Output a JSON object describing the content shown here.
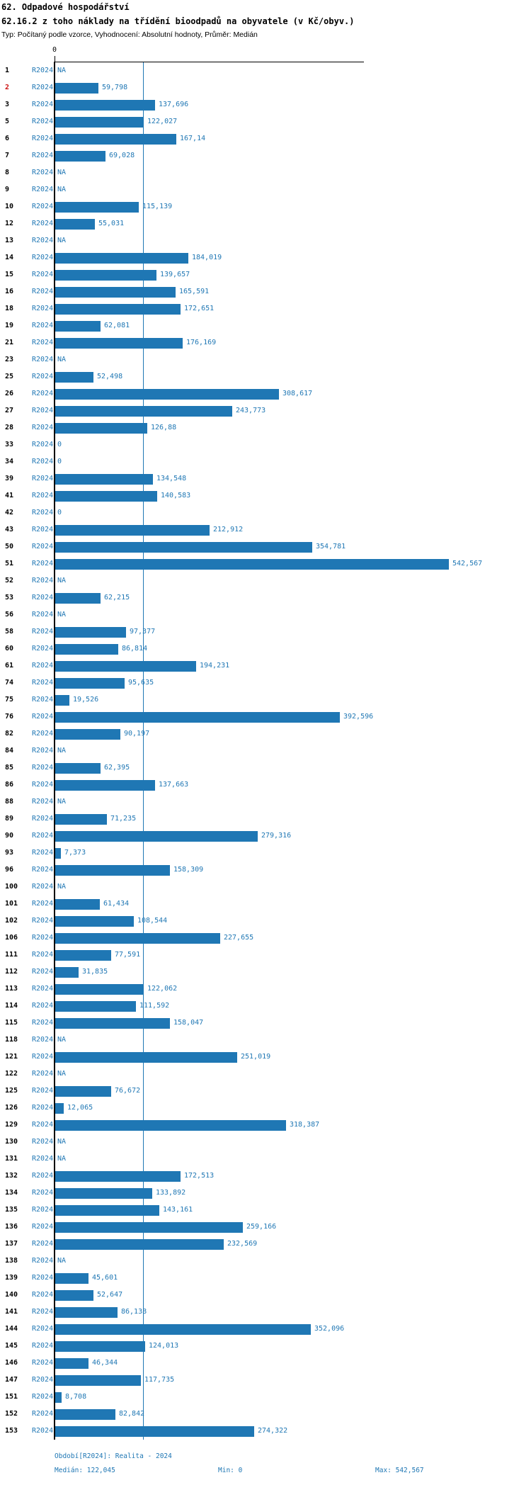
{
  "header": {
    "line1": "62. Odpadové hospodářství",
    "line2": "62.16.2 z toho náklady na třídění bioodpadů na obyvatele (v Kč/obyv.)",
    "line3": "Typ: Počítaný podle vzorce, Vyhodnocení: Absolutní hodnoty, Průměr: Medián"
  },
  "axis": {
    "zero_label": "0"
  },
  "footer": {
    "period": "Období[R2024]: Realita - 2024",
    "median": "Medián: 122,045",
    "min": "Min: 0",
    "max": "Max: 542,567"
  },
  "colors": {
    "bar": "#1f77b4",
    "text_blue": "#1f77b4",
    "median_line": "#1f77b4",
    "highlight_red": "#cc1111",
    "axis_black": "#000000"
  },
  "chart_data": {
    "type": "bar",
    "orientation": "horizontal",
    "title": "62. Odpadové hospodářství",
    "subtitle": "62.16.2 z toho náklady na třídění bioodpadů na obyvatele (v Kč/obyv.)",
    "note": "Typ: Počítaný podle vzorce, Vyhodnocení: Absolutní hodnoty, Průměr: Medián",
    "series_label": "R2024",
    "xlim": [
      0,
      542.567
    ],
    "median": 122.045,
    "min": 0,
    "max": 542.567,
    "median_display": "122,045",
    "min_display": "0",
    "max_display": "542,567",
    "rows": [
      {
        "id": "1",
        "value": null,
        "display": "NA",
        "highlight": false
      },
      {
        "id": "2",
        "value": 59.798,
        "display": "59,798",
        "highlight": true
      },
      {
        "id": "3",
        "value": 137.696,
        "display": "137,696",
        "highlight": false
      },
      {
        "id": "5",
        "value": 122.027,
        "display": "122,027",
        "highlight": false
      },
      {
        "id": "6",
        "value": 167.14,
        "display": "167,14",
        "highlight": false
      },
      {
        "id": "7",
        "value": 69.028,
        "display": "69,028",
        "highlight": false
      },
      {
        "id": "8",
        "value": null,
        "display": "NA",
        "highlight": false
      },
      {
        "id": "9",
        "value": null,
        "display": "NA",
        "highlight": false
      },
      {
        "id": "10",
        "value": 115.139,
        "display": "115,139",
        "highlight": false
      },
      {
        "id": "12",
        "value": 55.031,
        "display": "55,031",
        "highlight": false
      },
      {
        "id": "13",
        "value": null,
        "display": "NA",
        "highlight": false
      },
      {
        "id": "14",
        "value": 184.019,
        "display": "184,019",
        "highlight": false
      },
      {
        "id": "15",
        "value": 139.657,
        "display": "139,657",
        "highlight": false
      },
      {
        "id": "16",
        "value": 165.591,
        "display": "165,591",
        "highlight": false
      },
      {
        "id": "18",
        "value": 172.651,
        "display": "172,651",
        "highlight": false
      },
      {
        "id": "19",
        "value": 62.081,
        "display": "62,081",
        "highlight": false
      },
      {
        "id": "21",
        "value": 176.169,
        "display": "176,169",
        "highlight": false
      },
      {
        "id": "23",
        "value": null,
        "display": "NA",
        "highlight": false
      },
      {
        "id": "25",
        "value": 52.498,
        "display": "52,498",
        "highlight": false
      },
      {
        "id": "26",
        "value": 308.617,
        "display": "308,617",
        "highlight": false
      },
      {
        "id": "27",
        "value": 243.773,
        "display": "243,773",
        "highlight": false
      },
      {
        "id": "28",
        "value": 126.88,
        "display": "126,88",
        "highlight": false
      },
      {
        "id": "33",
        "value": 0,
        "display": "0",
        "highlight": false
      },
      {
        "id": "34",
        "value": 0,
        "display": "0",
        "highlight": false
      },
      {
        "id": "39",
        "value": 134.548,
        "display": "134,548",
        "highlight": false
      },
      {
        "id": "41",
        "value": 140.583,
        "display": "140,583",
        "highlight": false
      },
      {
        "id": "42",
        "value": 0,
        "display": "0",
        "highlight": false
      },
      {
        "id": "43",
        "value": 212.912,
        "display": "212,912",
        "highlight": false
      },
      {
        "id": "50",
        "value": 354.781,
        "display": "354,781",
        "highlight": false
      },
      {
        "id": "51",
        "value": 542.567,
        "display": "542,567",
        "highlight": false
      },
      {
        "id": "52",
        "value": null,
        "display": "NA",
        "highlight": false
      },
      {
        "id": "53",
        "value": 62.215,
        "display": "62,215",
        "highlight": false
      },
      {
        "id": "56",
        "value": null,
        "display": "NA",
        "highlight": false
      },
      {
        "id": "58",
        "value": 97.377,
        "display": "97,377",
        "highlight": false
      },
      {
        "id": "60",
        "value": 86.814,
        "display": "86,814",
        "highlight": false
      },
      {
        "id": "61",
        "value": 194.231,
        "display": "194,231",
        "highlight": false
      },
      {
        "id": "74",
        "value": 95.635,
        "display": "95,635",
        "highlight": false
      },
      {
        "id": "75",
        "value": 19.526,
        "display": "19,526",
        "highlight": false
      },
      {
        "id": "76",
        "value": 392.596,
        "display": "392,596",
        "highlight": false
      },
      {
        "id": "82",
        "value": 90.197,
        "display": "90,197",
        "highlight": false
      },
      {
        "id": "84",
        "value": null,
        "display": "NA",
        "highlight": false
      },
      {
        "id": "85",
        "value": 62.395,
        "display": "62,395",
        "highlight": false
      },
      {
        "id": "86",
        "value": 137.663,
        "display": "137,663",
        "highlight": false
      },
      {
        "id": "88",
        "value": null,
        "display": "NA",
        "highlight": false
      },
      {
        "id": "89",
        "value": 71.235,
        "display": "71,235",
        "highlight": false
      },
      {
        "id": "90",
        "value": 279.316,
        "display": "279,316",
        "highlight": false
      },
      {
        "id": "93",
        "value": 7.373,
        "display": "7,373",
        "highlight": false
      },
      {
        "id": "96",
        "value": 158.309,
        "display": "158,309",
        "highlight": false
      },
      {
        "id": "100",
        "value": null,
        "display": "NA",
        "highlight": false
      },
      {
        "id": "101",
        "value": 61.434,
        "display": "61,434",
        "highlight": false
      },
      {
        "id": "102",
        "value": 108.544,
        "display": "108,544",
        "highlight": false
      },
      {
        "id": "106",
        "value": 227.655,
        "display": "227,655",
        "highlight": false
      },
      {
        "id": "111",
        "value": 77.591,
        "display": "77,591",
        "highlight": false
      },
      {
        "id": "112",
        "value": 31.835,
        "display": "31,835",
        "highlight": false
      },
      {
        "id": "113",
        "value": 122.062,
        "display": "122,062",
        "highlight": false
      },
      {
        "id": "114",
        "value": 111.592,
        "display": "111,592",
        "highlight": false
      },
      {
        "id": "115",
        "value": 158.047,
        "display": "158,047",
        "highlight": false
      },
      {
        "id": "118",
        "value": null,
        "display": "NA",
        "highlight": false
      },
      {
        "id": "121",
        "value": 251.019,
        "display": "251,019",
        "highlight": false
      },
      {
        "id": "122",
        "value": null,
        "display": "NA",
        "highlight": false
      },
      {
        "id": "125",
        "value": 76.672,
        "display": "76,672",
        "highlight": false
      },
      {
        "id": "126",
        "value": 12.065,
        "display": "12,065",
        "highlight": false
      },
      {
        "id": "129",
        "value": 318.387,
        "display": "318,387",
        "highlight": false
      },
      {
        "id": "130",
        "value": null,
        "display": "NA",
        "highlight": false
      },
      {
        "id": "131",
        "value": null,
        "display": "NA",
        "highlight": false
      },
      {
        "id": "132",
        "value": 172.513,
        "display": "172,513",
        "highlight": false
      },
      {
        "id": "134",
        "value": 133.892,
        "display": "133,892",
        "highlight": false
      },
      {
        "id": "135",
        "value": 143.161,
        "display": "143,161",
        "highlight": false
      },
      {
        "id": "136",
        "value": 259.166,
        "display": "259,166",
        "highlight": false
      },
      {
        "id": "137",
        "value": 232.569,
        "display": "232,569",
        "highlight": false
      },
      {
        "id": "138",
        "value": null,
        "display": "NA",
        "highlight": false
      },
      {
        "id": "139",
        "value": 45.601,
        "display": "45,601",
        "highlight": false
      },
      {
        "id": "140",
        "value": 52.647,
        "display": "52,647",
        "highlight": false
      },
      {
        "id": "141",
        "value": 86.138,
        "display": "86,138",
        "highlight": false
      },
      {
        "id": "144",
        "value": 352.096,
        "display": "352,096",
        "highlight": false
      },
      {
        "id": "145",
        "value": 124.013,
        "display": "124,013",
        "highlight": false
      },
      {
        "id": "146",
        "value": 46.344,
        "display": "46,344",
        "highlight": false
      },
      {
        "id": "147",
        "value": 117.735,
        "display": "117,735",
        "highlight": false
      },
      {
        "id": "151",
        "value": 8.708,
        "display": "8,708",
        "highlight": false
      },
      {
        "id": "152",
        "value": 82.842,
        "display": "82,842",
        "highlight": false
      },
      {
        "id": "153",
        "value": 274.322,
        "display": "274,322",
        "highlight": false
      }
    ]
  }
}
